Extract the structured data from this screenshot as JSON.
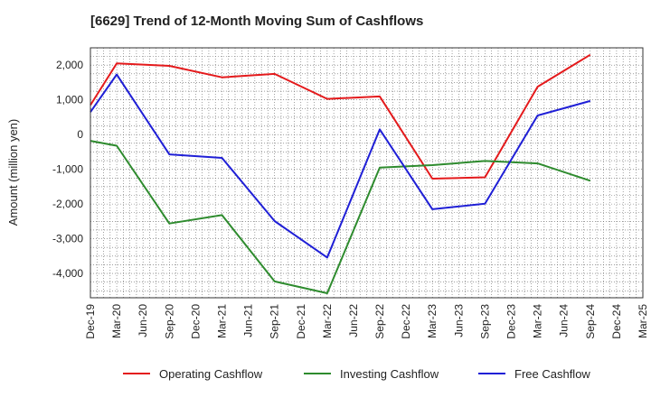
{
  "chart_data": {
    "type": "line",
    "title": "[6629]  Trend of 12-Month Moving Sum of Cashflows",
    "xlabel": "",
    "ylabel": "Amount (million yen)",
    "ylim": [
      -4700,
      2500
    ],
    "yticks": [
      2000,
      1000,
      0,
      -1000,
      -2000,
      -3000,
      -4000
    ],
    "ytick_labels": [
      "2,000",
      "1,000",
      "0",
      "-1,000",
      "-2,000",
      "-3,000",
      "-4,000"
    ],
    "categories": [
      "Dec-19",
      "Mar-20",
      "Jun-20",
      "Sep-20",
      "Dec-20",
      "Mar-21",
      "Jun-21",
      "Sep-21",
      "Dec-21",
      "Mar-22",
      "Jun-22",
      "Sep-22",
      "Dec-22",
      "Mar-23",
      "Jun-23",
      "Sep-23",
      "Dec-23",
      "Mar-24",
      "Jun-24",
      "Sep-24",
      "Dec-24",
      "Mar-25"
    ],
    "grid": true,
    "legend_position": "bottom",
    "series": [
      {
        "name": "Operating Cashflow",
        "color": "#e41a1c",
        "values": [
          850,
          2050,
          null,
          1980,
          null,
          1650,
          null,
          1750,
          null,
          1030,
          null,
          1100,
          null,
          -1270,
          null,
          -1230,
          null,
          1380,
          null,
          2300,
          null,
          null
        ]
      },
      {
        "name": "Investing Cashflow",
        "color": "#2e8b2e",
        "values": [
          -180,
          -320,
          null,
          -2560,
          null,
          -2320,
          null,
          -4230,
          null,
          -4570,
          null,
          -950,
          null,
          -880,
          null,
          -760,
          null,
          -830,
          null,
          -1330,
          null,
          null
        ]
      },
      {
        "name": "Free Cashflow",
        "color": "#1f1fd6",
        "values": [
          650,
          1730,
          null,
          -570,
          null,
          -670,
          null,
          -2490,
          null,
          -3540,
          null,
          150,
          null,
          -2150,
          null,
          -1990,
          null,
          550,
          null,
          970,
          null,
          null
        ]
      }
    ]
  }
}
